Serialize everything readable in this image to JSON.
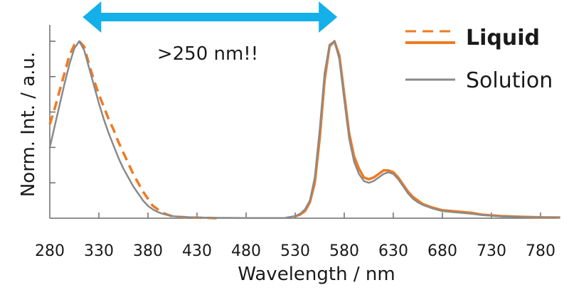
{
  "chart_data": {
    "type": "line",
    "xlabel": "Wavelength / nm",
    "ylabel": "Norm. Int. / a.u.",
    "xlim": [
      280,
      800
    ],
    "ylim": [
      0,
      1.0
    ],
    "x_ticks": [
      280,
      330,
      380,
      430,
      480,
      530,
      580,
      630,
      680,
      730,
      780
    ],
    "annotation": {
      "text": ">250 nm!!",
      "arrow_from": 315,
      "arrow_to": 570,
      "arrow_color": "#13b0ea"
    },
    "legend_position": "top-right",
    "series": [
      {
        "name": "Liquid",
        "color": "#ef7a22",
        "style": "dashed",
        "region": "excitation",
        "x": [
          280,
          285,
          290,
          295,
          300,
          305,
          310,
          315,
          320,
          325,
          330,
          335,
          340,
          345,
          350,
          355,
          360,
          365,
          370,
          375,
          380,
          385,
          390,
          395,
          400,
          405,
          410,
          420,
          430,
          440,
          450
        ],
        "y": [
          0.53,
          0.62,
          0.72,
          0.82,
          0.92,
          0.98,
          1.0,
          0.97,
          0.87,
          0.78,
          0.7,
          0.63,
          0.56,
          0.5,
          0.43,
          0.37,
          0.31,
          0.25,
          0.2,
          0.15,
          0.11,
          0.07,
          0.05,
          0.03,
          0.02,
          0.01,
          0.008,
          0.005,
          0.003,
          0.002,
          0.0
        ]
      },
      {
        "name": "Liquid",
        "color": "#ef7a22",
        "style": "solid",
        "region": "emission",
        "x": [
          530,
          535,
          540,
          545,
          550,
          555,
          560,
          565,
          570,
          575,
          580,
          585,
          590,
          595,
          600,
          605,
          610,
          615,
          620,
          625,
          630,
          635,
          640,
          645,
          650,
          655,
          660,
          670,
          680,
          690,
          700,
          710,
          720,
          740,
          760,
          780,
          800
        ],
        "y": [
          0.01,
          0.02,
          0.04,
          0.09,
          0.2,
          0.45,
          0.78,
          0.97,
          1.0,
          0.92,
          0.7,
          0.48,
          0.35,
          0.28,
          0.23,
          0.22,
          0.23,
          0.25,
          0.27,
          0.27,
          0.26,
          0.23,
          0.19,
          0.15,
          0.12,
          0.1,
          0.08,
          0.06,
          0.045,
          0.04,
          0.035,
          0.03,
          0.02,
          0.012,
          0.008,
          0.005,
          0.004
        ]
      },
      {
        "name": "Solution",
        "color": "#8a8a8a",
        "style": "solid",
        "region": "excitation",
        "x": [
          280,
          285,
          290,
          295,
          300,
          305,
          310,
          315,
          320,
          325,
          330,
          335,
          340,
          345,
          350,
          355,
          360,
          365,
          370,
          375,
          380,
          385,
          390,
          395,
          400,
          405,
          410,
          420,
          430,
          440,
          450,
          460,
          480,
          500,
          520
        ],
        "y": [
          0.4,
          0.52,
          0.64,
          0.76,
          0.87,
          0.96,
          1.0,
          0.95,
          0.85,
          0.75,
          0.65,
          0.56,
          0.48,
          0.41,
          0.34,
          0.28,
          0.23,
          0.18,
          0.14,
          0.1,
          0.07,
          0.05,
          0.035,
          0.025,
          0.018,
          0.012,
          0.009,
          0.006,
          0.004,
          0.003,
          0.002,
          0.002,
          0.001,
          0.001,
          0.001
        ]
      },
      {
        "name": "Solution",
        "color": "#8a8a8a",
        "style": "solid",
        "region": "emission",
        "x": [
          520,
          530,
          535,
          540,
          545,
          550,
          555,
          560,
          565,
          570,
          575,
          580,
          585,
          590,
          595,
          600,
          605,
          610,
          615,
          620,
          625,
          630,
          635,
          640,
          645,
          650,
          655,
          660,
          670,
          680,
          690,
          700,
          710,
          720,
          740,
          760,
          780,
          800
        ],
        "y": [
          0.003,
          0.012,
          0.025,
          0.05,
          0.1,
          0.23,
          0.5,
          0.82,
          0.98,
          1.0,
          0.9,
          0.67,
          0.45,
          0.32,
          0.25,
          0.21,
          0.2,
          0.21,
          0.23,
          0.25,
          0.26,
          0.25,
          0.22,
          0.18,
          0.14,
          0.11,
          0.09,
          0.075,
          0.055,
          0.04,
          0.035,
          0.03,
          0.025,
          0.018,
          0.01,
          0.007,
          0.004,
          0.003
        ]
      }
    ],
    "legend": [
      {
        "label": "Liquid",
        "color": "#ef7a22",
        "bold": true
      },
      {
        "label": "Solution",
        "color": "#8a8a8a",
        "bold": false
      }
    ]
  }
}
